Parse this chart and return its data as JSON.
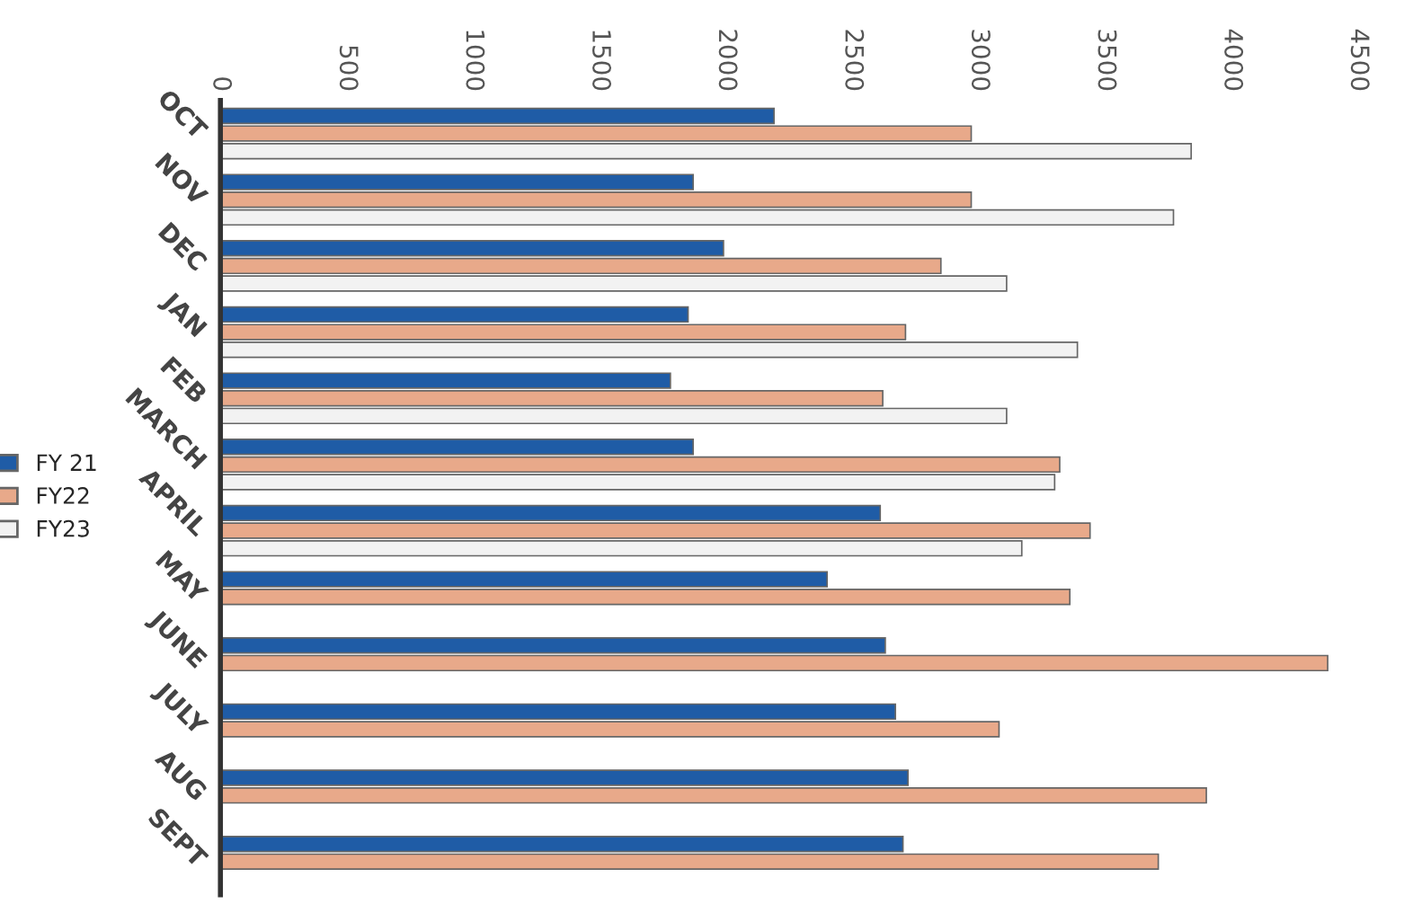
{
  "chart_data": {
    "type": "bar",
    "orientation": "horizontal",
    "categories": [
      "OCT",
      "NOV",
      "DEC",
      "JAN",
      "FEB",
      "MARCH",
      "APRIL",
      "MAY",
      "JUNE",
      "JULY",
      "AUG",
      "SEPT"
    ],
    "series": [
      {
        "name": "FY 21",
        "color": "#1f5ca6",
        "values": [
          2190,
          1870,
          1990,
          1850,
          1780,
          1870,
          2610,
          2400,
          2630,
          2670,
          2720,
          2700
        ]
      },
      {
        "name": "FY22",
        "color": "#e8a98a",
        "values": [
          2970,
          2970,
          2850,
          2710,
          2620,
          3320,
          3440,
          3360,
          4380,
          3080,
          3900,
          3710
        ]
      },
      {
        "name": "FY23",
        "color": "#f2f2f2",
        "values": [
          3840,
          3770,
          3110,
          3390,
          3110,
          3300,
          3170,
          null,
          null,
          null,
          null,
          null
        ]
      }
    ],
    "xlim": [
      0,
      4500
    ],
    "xticks": [
      0,
      500,
      1000,
      1500,
      2000,
      2500,
      3000,
      3500,
      4000,
      4500
    ],
    "grid": false,
    "legend": "left"
  }
}
